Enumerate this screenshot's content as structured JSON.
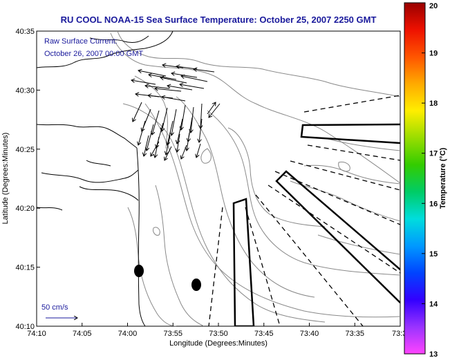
{
  "title": "RU COOL  NOAA-15  Sea Surface Temperature:  October 25, 2007 2250 GMT",
  "annotations": {
    "line1": "Raw Surface Current:",
    "line2": "October 26, 2007 00:00 GMT"
  },
  "x_axis": {
    "label": "Longitude (Degrees:Minutes)",
    "ticks": [
      "74:10",
      "74:05",
      "74:00",
      "73:55",
      "73:50",
      "73:45",
      "73:40",
      "73:35",
      "73:3"
    ]
  },
  "y_axis": {
    "label": "Latitude (Degrees:Minutes)",
    "ticks": [
      "40:35",
      "40:30",
      "40:25",
      "40:20",
      "40:15",
      "40:10"
    ]
  },
  "colorbar": {
    "label": "Temperature (°C)",
    "ticks": [
      "20",
      "19",
      "18",
      "17",
      "16",
      "15",
      "14",
      "13"
    ],
    "min": 13,
    "max": 20,
    "colors": [
      "#ff44ff",
      "#9933ff",
      "#3300ff",
      "#0044ff",
      "#0099ff",
      "#00dddd",
      "#00cc66",
      "#33cc00",
      "#99dd00",
      "#ffee00",
      "#ffaa00",
      "#ff5500",
      "#ee1100",
      "#990000"
    ]
  },
  "scale": {
    "label": "50 cm/s"
  },
  "map_style": {
    "contour_color": "#888888",
    "coast_color": "#000000",
    "structure_color": "#000000"
  }
}
